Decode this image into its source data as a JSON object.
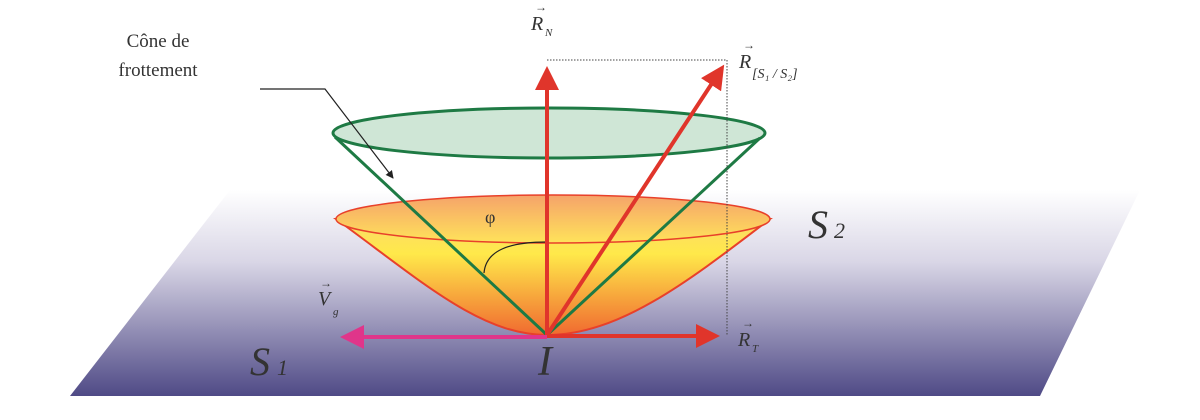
{
  "labels": {
    "cone_line1": "Cône de",
    "cone_line2": "frottement",
    "normal_force": "R",
    "normal_sub": "N",
    "resultant": "R",
    "resultant_sub": "[S₁ / S₂]",
    "tangential": "R",
    "tangential_sub": "T",
    "velocity": "V",
    "velocity_sub": "g",
    "angle": "φ",
    "solid1": "S",
    "solid1_sub": "1",
    "solid2": "S",
    "solid2_sub": "2",
    "contact_point": "I"
  },
  "colors": {
    "force_arrow": "#e0352b",
    "velocity_arrow": "#e0358a",
    "friction_cone": "#1e7a44",
    "cone_fill": "#cfe6d6",
    "bowl_top": "#ffe94a",
    "bowl_bottom": "#f06a30",
    "plane_bottom": "#4f4a86"
  }
}
